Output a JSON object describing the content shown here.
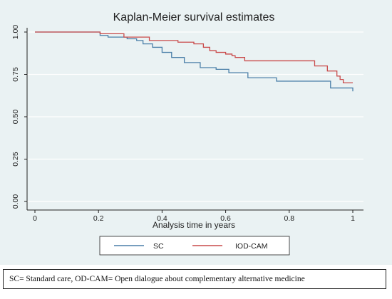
{
  "chart_data": {
    "type": "line",
    "subtype": "step",
    "title": "Kaplan-Meier survival estimates",
    "xlabel": "Analysis time in years",
    "ylabel": "",
    "xlim": [
      0,
      1
    ],
    "ylim": [
      0,
      1
    ],
    "x_ticks": [
      "0",
      "0.2",
      "0.4",
      "0.6",
      "0.8",
      "1"
    ],
    "y_ticks": [
      "0.00",
      "0.25",
      "0.50",
      "0.75",
      "1.00"
    ],
    "grid": "horizontal",
    "legend_position": "bottom",
    "series": [
      {
        "name": "SC",
        "color": "#4a7fa8",
        "x": [
          0,
          0.205,
          0.23,
          0.29,
          0.32,
          0.34,
          0.37,
          0.4,
          0.43,
          0.47,
          0.52,
          0.57,
          0.61,
          0.67,
          0.76,
          0.93,
          1.0
        ],
        "y": [
          1.0,
          0.98,
          0.97,
          0.96,
          0.95,
          0.93,
          0.91,
          0.88,
          0.85,
          0.82,
          0.79,
          0.78,
          0.76,
          0.73,
          0.71,
          0.67,
          0.65
        ]
      },
      {
        "name": "IOD-CAM",
        "color": "#c94a4a",
        "x": [
          0,
          0.205,
          0.28,
          0.36,
          0.45,
          0.5,
          0.53,
          0.55,
          0.57,
          0.6,
          0.62,
          0.63,
          0.66,
          0.79,
          0.88,
          0.92,
          0.95,
          0.96,
          0.97,
          1.0
        ],
        "y": [
          1.0,
          0.99,
          0.97,
          0.95,
          0.94,
          0.93,
          0.91,
          0.89,
          0.88,
          0.87,
          0.86,
          0.85,
          0.83,
          0.83,
          0.8,
          0.77,
          0.74,
          0.72,
          0.7,
          0.7
        ]
      }
    ]
  },
  "caption": "SC= Standard care, OD-CAM= Open dialogue about complementary alternative medicine",
  "colors": {
    "plot_background": "#eaf2f3",
    "frame": "#222222",
    "grid": "#ffffff"
  }
}
